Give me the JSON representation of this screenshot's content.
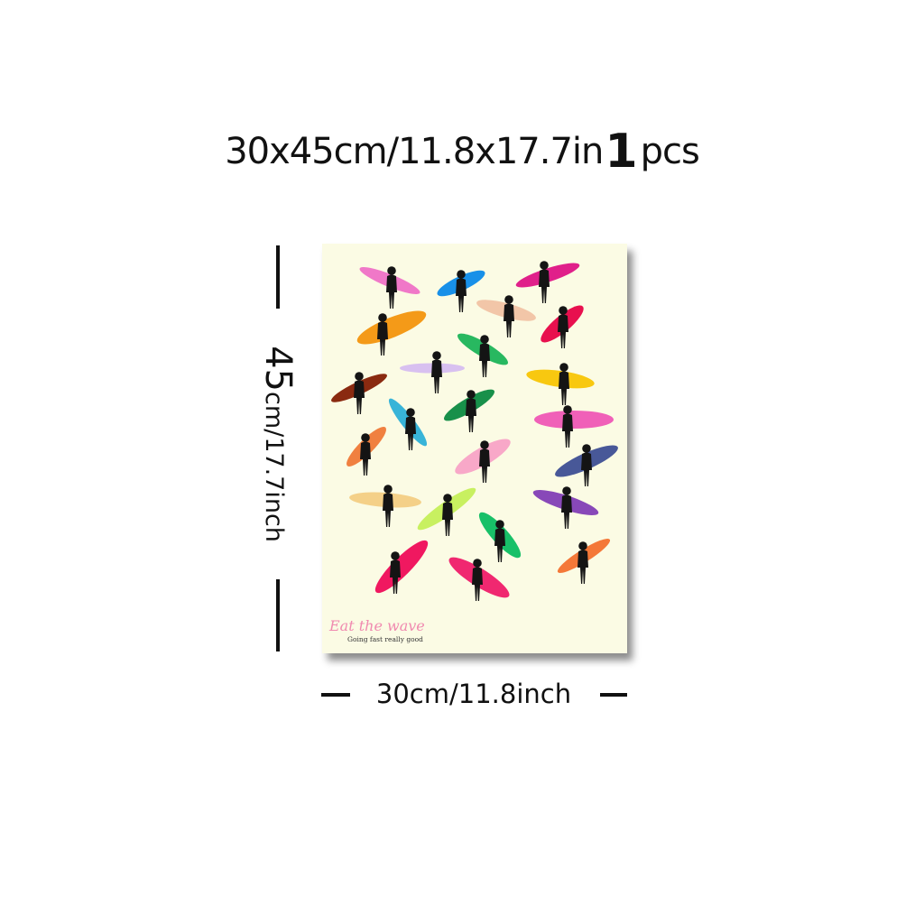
{
  "headline": {
    "dims": "30x45cm/11.8x17.7in",
    "qty": "1",
    "unit": "pcs"
  },
  "height_label": {
    "number": "45",
    "rest": "cm/17.7inch"
  },
  "width_label": "30cm/11.8inch",
  "poster": {
    "brand": "Eat the wave",
    "tagline": "Going fast really good",
    "surfboard_colors": [
      "#f078c8",
      "#1890e8",
      "#e0208a",
      "#f2c6a8",
      "#e8104e",
      "#f49a18",
      "#28b860",
      "#d8c0f0",
      "#f8c810",
      "#8a2a10",
      "#38b4d8",
      "#18904a",
      "#f060b8",
      "#f08040",
      "#f8a8c8",
      "#485898",
      "#f4d088",
      "#c8f060",
      "#8848b8",
      "#f01860",
      "#18c068",
      "#f47838",
      "#f02870"
    ]
  }
}
